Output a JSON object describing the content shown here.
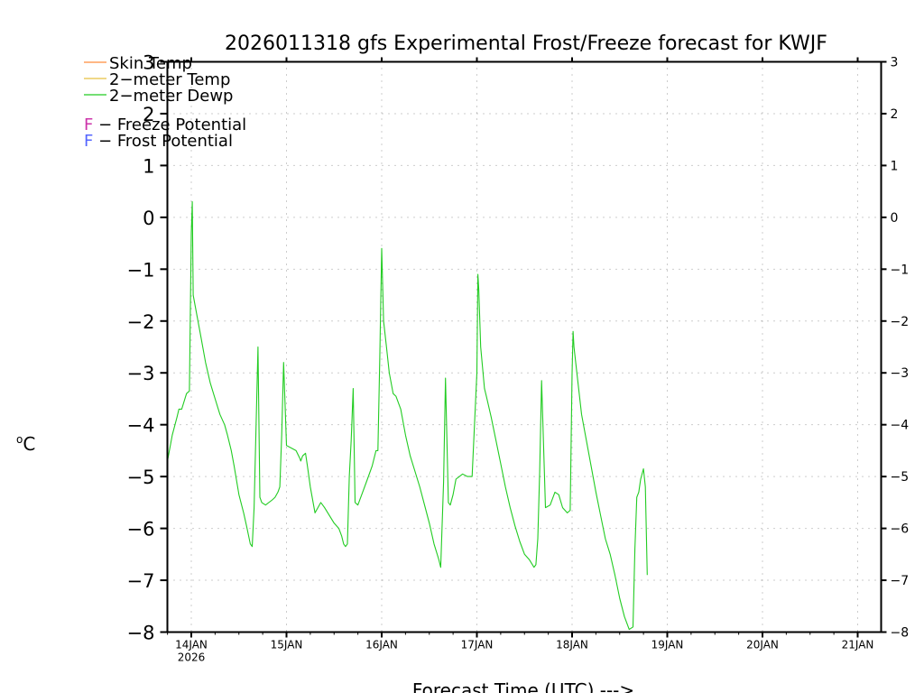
{
  "chart_data": {
    "type": "line",
    "title": "2026011318 gfs Experimental Frost/Freeze forecast for KWJF",
    "xlabel": "Forecast Time (UTC) --->",
    "ylabel": "°C",
    "ylabel_degree": "o",
    "ylabel_unit": "C",
    "ylim": [
      -8,
      3
    ],
    "xlim": [
      -0.25,
      7.25
    ],
    "yticks": [
      -8,
      -7,
      -6,
      -5,
      -4,
      -3,
      -2,
      -1,
      0,
      1,
      2,
      3
    ],
    "ytick_labels": [
      "−8",
      "−7",
      "−6",
      "−5",
      "−4",
      "−3",
      "−2",
      "−1",
      "0",
      "1",
      "2",
      "3"
    ],
    "xticks": [
      {
        "pos": 0,
        "label": "14JAN",
        "sub": "2026"
      },
      {
        "pos": 1,
        "label": "15JAN",
        "sub": ""
      },
      {
        "pos": 2,
        "label": "16JAN",
        "sub": ""
      },
      {
        "pos": 3,
        "label": "17JAN",
        "sub": ""
      },
      {
        "pos": 4,
        "label": "18JAN",
        "sub": ""
      },
      {
        "pos": 5,
        "label": "19JAN",
        "sub": ""
      },
      {
        "pos": 6,
        "label": "20JAN",
        "sub": ""
      },
      {
        "pos": 7,
        "label": "21JAN",
        "sub": ""
      }
    ],
    "grid": true,
    "colors": {
      "skin_temp": "#ff8c3a",
      "temp_2m": "#e6c040",
      "dewp_2m": "#22cc22",
      "freeze": "#cc33aa",
      "frost": "#5566ff",
      "axis": "#000000",
      "grid": "#9a9a9a"
    },
    "legend": {
      "placement": "top-left",
      "entries": [
        {
          "key": "skin_temp",
          "label": "Skin Temp"
        },
        {
          "key": "temp_2m",
          "label": "2−meter Temp"
        },
        {
          "key": "dewp_2m",
          "label": "2−meter Dewp"
        }
      ],
      "potentials": [
        {
          "key": "freeze",
          "letter": "F",
          "label": " − Freeze Potential"
        },
        {
          "key": "frost",
          "letter": "F",
          "label": " − Frost Potential"
        }
      ]
    },
    "series": [
      {
        "name": "2-meter Dewp",
        "color_key": "dewp_2m",
        "x": [
          -0.25,
          -0.2,
          -0.15,
          -0.13,
          -0.1,
          -0.05,
          -0.02,
          0,
          0.01,
          0.02,
          0.04,
          0.1,
          0.15,
          0.2,
          0.25,
          0.3,
          0.35,
          0.38,
          0.42,
          0.45,
          0.5,
          0.55,
          0.58,
          0.62,
          0.64,
          0.66,
          0.7,
          0.72,
          0.74,
          0.78,
          0.85,
          0.88,
          0.91,
          0.93,
          0.95,
          0.97,
          1.0,
          1.05,
          1.1,
          1.14,
          1.15,
          1.17,
          1.2,
          1.22,
          1.25,
          1.28,
          1.3,
          1.33,
          1.36,
          1.38,
          1.4,
          1.45,
          1.5,
          1.55,
          1.58,
          1.6,
          1.62,
          1.64,
          1.66,
          1.68,
          1.7,
          1.72,
          1.75,
          1.8,
          1.85,
          1.9,
          1.94,
          1.96,
          1.98,
          2.0,
          2.02,
          2.05,
          2.08,
          2.12,
          2.15,
          2.2,
          2.25,
          2.3,
          2.35,
          2.4,
          2.45,
          2.5,
          2.55,
          2.6,
          2.62,
          2.65,
          2.67,
          2.7,
          2.72,
          2.75,
          2.78,
          2.85,
          2.9,
          2.95,
          3.0,
          3.01,
          3.02,
          3.04,
          3.08,
          3.1,
          3.15,
          3.2,
          3.25,
          3.3,
          3.35,
          3.4,
          3.45,
          3.5,
          3.55,
          3.6,
          3.62,
          3.64,
          3.66,
          3.68,
          3.72,
          3.77,
          3.82,
          3.86,
          3.9,
          3.95,
          3.98,
          4.0,
          4.01,
          4.02,
          4.05,
          4.1,
          4.15,
          4.2,
          4.25,
          4.3,
          4.35,
          4.4,
          4.45,
          4.5,
          4.55,
          4.6,
          4.64,
          4.66,
          4.68,
          4.7,
          4.72,
          4.75,
          4.77,
          4.79
        ],
        "y": [
          -4.7,
          -4.2,
          -3.85,
          -3.7,
          -3.7,
          -3.4,
          -3.35,
          -0.3,
          0.3,
          -1.5,
          -1.7,
          -2.3,
          -2.8,
          -3.2,
          -3.5,
          -3.8,
          -4.0,
          -4.2,
          -4.5,
          -4.8,
          -5.35,
          -5.7,
          -5.95,
          -6.3,
          -6.35,
          -5.6,
          -2.5,
          -5.4,
          -5.5,
          -5.55,
          -5.45,
          -5.4,
          -5.3,
          -5.2,
          -4.2,
          -2.8,
          -4.4,
          -4.45,
          -4.5,
          -4.65,
          -4.7,
          -4.6,
          -4.55,
          -4.8,
          -5.2,
          -5.5,
          -5.7,
          -5.6,
          -5.5,
          -5.55,
          -5.6,
          -5.75,
          -5.9,
          -6.0,
          -6.15,
          -6.3,
          -6.35,
          -6.3,
          -5.0,
          -4.3,
          -3.3,
          -5.5,
          -5.55,
          -5.3,
          -5.05,
          -4.8,
          -4.5,
          -4.5,
          -2.7,
          -0.6,
          -2.0,
          -2.5,
          -3.0,
          -3.4,
          -3.45,
          -3.7,
          -4.2,
          -4.6,
          -4.9,
          -5.2,
          -5.55,
          -5.9,
          -6.3,
          -6.6,
          -6.75,
          -5.1,
          -3.1,
          -5.5,
          -5.55,
          -5.35,
          -5.05,
          -4.95,
          -5.0,
          -5.0,
          -3.0,
          -1.1,
          -1.4,
          -2.5,
          -3.3,
          -3.45,
          -3.85,
          -4.3,
          -4.75,
          -5.2,
          -5.6,
          -5.95,
          -6.25,
          -6.5,
          -6.6,
          -6.75,
          -6.7,
          -6.2,
          -4.9,
          -3.15,
          -5.6,
          -5.55,
          -5.3,
          -5.35,
          -5.6,
          -5.7,
          -5.65,
          -3.0,
          -2.2,
          -2.5,
          -3.0,
          -3.8,
          -4.3,
          -4.8,
          -5.3,
          -5.75,
          -6.2,
          -6.5,
          -6.9,
          -7.35,
          -7.7,
          -7.95,
          -7.9,
          -6.4,
          -5.4,
          -5.3,
          -5.05,
          -4.85,
          -5.2,
          -6.9
        ]
      }
    ]
  }
}
